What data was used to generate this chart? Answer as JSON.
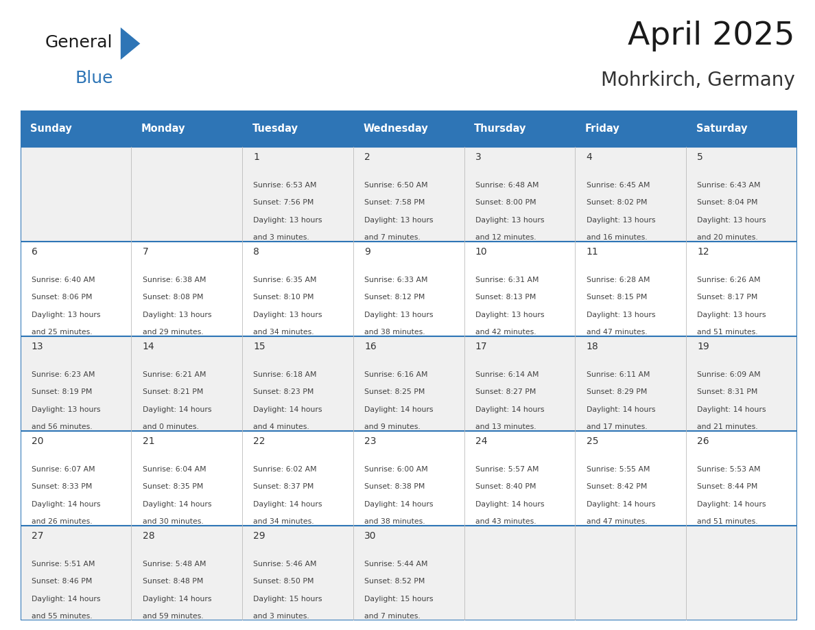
{
  "title": "April 2025",
  "subtitle": "Mohrkirch, Germany",
  "days_of_week": [
    "Sunday",
    "Monday",
    "Tuesday",
    "Wednesday",
    "Thursday",
    "Friday",
    "Saturday"
  ],
  "header_bg": "#2E75B6",
  "header_text_color": "#FFFFFF",
  "row_bg_odd": "#F0F0F0",
  "row_bg_even": "#FFFFFF",
  "cell_text_color": "#404040",
  "day_number_color": "#333333",
  "border_color": "#2E75B6",
  "separator_color": "#AAAAAA",
  "title_color": "#1a1a1a",
  "subtitle_color": "#333333",
  "logo_text1": "General",
  "logo_text2": "Blue",
  "logo_text1_color": "#1a1a1a",
  "logo_text2_color": "#2E75B6",
  "logo_triangle_color": "#2E75B6",
  "calendar_data": [
    [
      {
        "day": null,
        "info": null
      },
      {
        "day": null,
        "info": null
      },
      {
        "day": 1,
        "info": "Sunrise: 6:53 AM\nSunset: 7:56 PM\nDaylight: 13 hours\nand 3 minutes."
      },
      {
        "day": 2,
        "info": "Sunrise: 6:50 AM\nSunset: 7:58 PM\nDaylight: 13 hours\nand 7 minutes."
      },
      {
        "day": 3,
        "info": "Sunrise: 6:48 AM\nSunset: 8:00 PM\nDaylight: 13 hours\nand 12 minutes."
      },
      {
        "day": 4,
        "info": "Sunrise: 6:45 AM\nSunset: 8:02 PM\nDaylight: 13 hours\nand 16 minutes."
      },
      {
        "day": 5,
        "info": "Sunrise: 6:43 AM\nSunset: 8:04 PM\nDaylight: 13 hours\nand 20 minutes."
      }
    ],
    [
      {
        "day": 6,
        "info": "Sunrise: 6:40 AM\nSunset: 8:06 PM\nDaylight: 13 hours\nand 25 minutes."
      },
      {
        "day": 7,
        "info": "Sunrise: 6:38 AM\nSunset: 8:08 PM\nDaylight: 13 hours\nand 29 minutes."
      },
      {
        "day": 8,
        "info": "Sunrise: 6:35 AM\nSunset: 8:10 PM\nDaylight: 13 hours\nand 34 minutes."
      },
      {
        "day": 9,
        "info": "Sunrise: 6:33 AM\nSunset: 8:12 PM\nDaylight: 13 hours\nand 38 minutes."
      },
      {
        "day": 10,
        "info": "Sunrise: 6:31 AM\nSunset: 8:13 PM\nDaylight: 13 hours\nand 42 minutes."
      },
      {
        "day": 11,
        "info": "Sunrise: 6:28 AM\nSunset: 8:15 PM\nDaylight: 13 hours\nand 47 minutes."
      },
      {
        "day": 12,
        "info": "Sunrise: 6:26 AM\nSunset: 8:17 PM\nDaylight: 13 hours\nand 51 minutes."
      }
    ],
    [
      {
        "day": 13,
        "info": "Sunrise: 6:23 AM\nSunset: 8:19 PM\nDaylight: 13 hours\nand 56 minutes."
      },
      {
        "day": 14,
        "info": "Sunrise: 6:21 AM\nSunset: 8:21 PM\nDaylight: 14 hours\nand 0 minutes."
      },
      {
        "day": 15,
        "info": "Sunrise: 6:18 AM\nSunset: 8:23 PM\nDaylight: 14 hours\nand 4 minutes."
      },
      {
        "day": 16,
        "info": "Sunrise: 6:16 AM\nSunset: 8:25 PM\nDaylight: 14 hours\nand 9 minutes."
      },
      {
        "day": 17,
        "info": "Sunrise: 6:14 AM\nSunset: 8:27 PM\nDaylight: 14 hours\nand 13 minutes."
      },
      {
        "day": 18,
        "info": "Sunrise: 6:11 AM\nSunset: 8:29 PM\nDaylight: 14 hours\nand 17 minutes."
      },
      {
        "day": 19,
        "info": "Sunrise: 6:09 AM\nSunset: 8:31 PM\nDaylight: 14 hours\nand 21 minutes."
      }
    ],
    [
      {
        "day": 20,
        "info": "Sunrise: 6:07 AM\nSunset: 8:33 PM\nDaylight: 14 hours\nand 26 minutes."
      },
      {
        "day": 21,
        "info": "Sunrise: 6:04 AM\nSunset: 8:35 PM\nDaylight: 14 hours\nand 30 minutes."
      },
      {
        "day": 22,
        "info": "Sunrise: 6:02 AM\nSunset: 8:37 PM\nDaylight: 14 hours\nand 34 minutes."
      },
      {
        "day": 23,
        "info": "Sunrise: 6:00 AM\nSunset: 8:38 PM\nDaylight: 14 hours\nand 38 minutes."
      },
      {
        "day": 24,
        "info": "Sunrise: 5:57 AM\nSunset: 8:40 PM\nDaylight: 14 hours\nand 43 minutes."
      },
      {
        "day": 25,
        "info": "Sunrise: 5:55 AM\nSunset: 8:42 PM\nDaylight: 14 hours\nand 47 minutes."
      },
      {
        "day": 26,
        "info": "Sunrise: 5:53 AM\nSunset: 8:44 PM\nDaylight: 14 hours\nand 51 minutes."
      }
    ],
    [
      {
        "day": 27,
        "info": "Sunrise: 5:51 AM\nSunset: 8:46 PM\nDaylight: 14 hours\nand 55 minutes."
      },
      {
        "day": 28,
        "info": "Sunrise: 5:48 AM\nSunset: 8:48 PM\nDaylight: 14 hours\nand 59 minutes."
      },
      {
        "day": 29,
        "info": "Sunrise: 5:46 AM\nSunset: 8:50 PM\nDaylight: 15 hours\nand 3 minutes."
      },
      {
        "day": 30,
        "info": "Sunrise: 5:44 AM\nSunset: 8:52 PM\nDaylight: 15 hours\nand 7 minutes."
      },
      {
        "day": null,
        "info": null
      },
      {
        "day": null,
        "info": null
      },
      {
        "day": null,
        "info": null
      }
    ]
  ]
}
